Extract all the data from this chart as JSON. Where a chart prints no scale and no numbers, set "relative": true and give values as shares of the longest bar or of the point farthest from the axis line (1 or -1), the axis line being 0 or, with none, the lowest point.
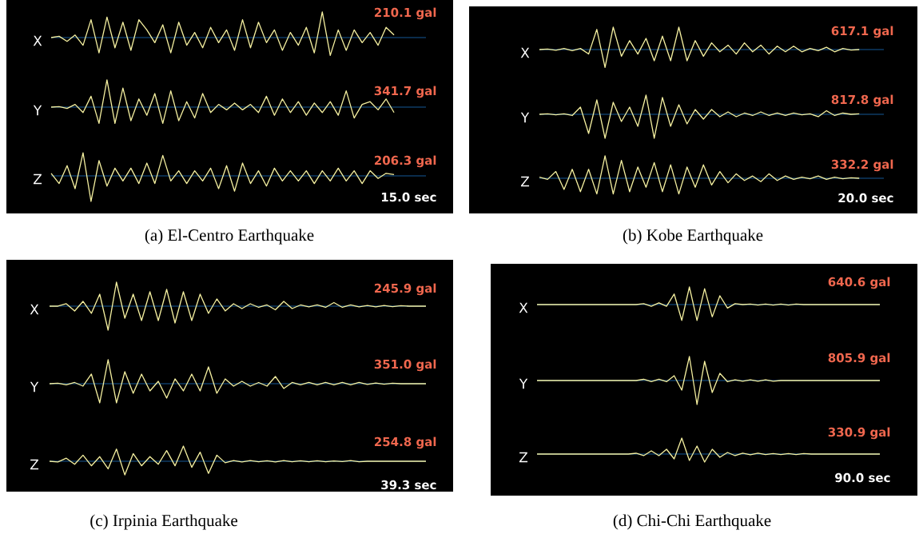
{
  "chart_data": [
    {
      "type": "line",
      "relative": true,
      "categories": [
        null,
        null,
        null,
        null,
        null,
        null,
        null,
        null,
        null,
        null,
        null,
        null,
        null,
        null,
        null,
        null,
        null,
        null,
        null,
        null,
        null,
        null,
        null,
        null,
        null,
        null,
        null,
        null,
        null,
        null,
        null,
        null,
        null,
        null,
        null,
        null,
        null,
        null,
        null,
        null,
        null,
        null,
        null,
        null,
        null,
        null,
        null,
        null
      ],
      "series": [
        {
          "name": "X",
          "color": "#f5f0a0",
          "values": [
            0,
            0.05,
            -0.15,
            0.1,
            -0.3,
            0.7,
            -0.6,
            0.8,
            -0.4,
            0.6,
            -0.5,
            0.7,
            0.3,
            -0.2,
            0.5,
            -0.6,
            0.6,
            -0.3,
            0.2,
            -0.4,
            0.4,
            -0.2,
            0.3,
            -0.5,
            0.7,
            -0.4,
            0.6,
            -0.2,
            0.3,
            -0.5,
            0.2,
            -0.3,
            0.4,
            -0.6,
            1.0,
            -0.7,
            0.3,
            -0.5,
            0.3,
            -0.2,
            0.2,
            -0.3,
            0.4,
            0.1,
            null,
            null,
            null,
            null
          ]
        }
      ],
      "annotations": [
        "210.1 gal"
      ],
      "ref_lines": [
        {
          "axis": "y",
          "value": 0,
          "color": "#1e7fd8"
        }
      ]
    },
    {
      "type": "line",
      "relative": true,
      "categories": [
        null,
        null,
        null,
        null,
        null,
        null,
        null,
        null,
        null,
        null,
        null,
        null,
        null,
        null,
        null,
        null,
        null,
        null,
        null,
        null,
        null,
        null,
        null,
        null,
        null,
        null,
        null,
        null,
        null,
        null,
        null,
        null,
        null,
        null,
        null,
        null,
        null,
        null,
        null,
        null,
        null,
        null,
        null,
        null,
        null,
        null,
        null,
        null
      ],
      "series": [
        {
          "name": "Y",
          "color": "#f5f0a0",
          "values": [
            0,
            0.02,
            -0.05,
            0.1,
            -0.2,
            0.4,
            -0.6,
            1.0,
            -0.6,
            0.7,
            -0.5,
            0.3,
            -0.3,
            0.5,
            -0.6,
            0.6,
            -0.5,
            0.2,
            -0.4,
            0.5,
            -0.2,
            0.1,
            -0.1,
            0.15,
            -0.1,
            0.1,
            -0.2,
            0.4,
            -0.3,
            0.3,
            -0.2,
            0.2,
            -0.3,
            0.15,
            -0.2,
            0.2,
            -0.3,
            0.6,
            -0.4,
            0.1,
            0.2,
            -0.1,
            0.3,
            -0.2,
            null,
            null,
            null,
            null
          ]
        }
      ],
      "annotations": [
        "341.7 gal"
      ],
      "ref_lines": [
        {
          "axis": "y",
          "value": 0,
          "color": "#1e7fd8"
        }
      ]
    },
    {
      "type": "line",
      "relative": true,
      "title": "(a) El-Centro Earthquake",
      "categories": [
        null,
        null,
        null,
        null,
        null,
        null,
        null,
        null,
        null,
        null,
        null,
        null,
        null,
        null,
        null,
        null,
        null,
        null,
        null,
        null,
        null,
        null,
        null,
        null,
        null,
        null,
        null,
        null,
        null,
        null,
        null,
        null,
        null,
        null,
        null,
        null,
        null,
        null,
        null,
        null,
        null,
        null,
        null,
        null,
        null,
        null,
        null,
        null
      ],
      "series": [
        {
          "name": "Z",
          "color": "#f5f0a0",
          "values": [
            0.1,
            -0.3,
            0.4,
            -0.5,
            0.9,
            -1.0,
            0.6,
            -0.4,
            0.3,
            -0.2,
            0.3,
            -0.3,
            0.5,
            -0.3,
            0.8,
            -0.2,
            0.2,
            -0.3,
            0.2,
            -0.2,
            0.3,
            -0.5,
            0.4,
            -0.6,
            0.5,
            -0.3,
            0.2,
            -0.4,
            0.3,
            -0.2,
            0.2,
            -0.2,
            0.2,
            -0.3,
            0.2,
            -0.2,
            0.3,
            -0.2,
            0.2,
            -0.3,
            0.2,
            -0.1,
            0.1,
            0.05,
            null,
            null,
            null,
            null
          ]
        }
      ],
      "annotations": [
        "206.3 gal",
        "15.0 sec"
      ],
      "ref_lines": [
        {
          "axis": "y",
          "value": 0,
          "color": "#1e7fd8"
        }
      ]
    },
    {
      "type": "line",
      "relative": true,
      "categories": [
        null,
        null,
        null,
        null,
        null,
        null,
        null,
        null,
        null,
        null,
        null,
        null,
        null,
        null,
        null,
        null,
        null,
        null,
        null,
        null,
        null,
        null,
        null,
        null,
        null,
        null,
        null,
        null,
        null,
        null,
        null,
        null,
        null,
        null,
        null,
        null,
        null,
        null,
        null,
        null,
        null,
        null,
        null
      ],
      "series": [
        {
          "name": "X",
          "color": "#f5f0a0",
          "values": [
            0,
            0.02,
            -0.03,
            0.05,
            -0.05,
            0.05,
            -0.2,
            0.9,
            -0.8,
            1.0,
            -0.3,
            0.4,
            -0.2,
            0.5,
            -0.5,
            0.6,
            -0.5,
            1.0,
            -0.5,
            0.4,
            -0.3,
            0.3,
            -0.1,
            0.2,
            -0.2,
            0.3,
            -0.1,
            0.2,
            -0.2,
            0.15,
            -0.1,
            0.15,
            -0.1,
            0.05,
            -0.05,
            0.1,
            -0.1,
            0.05,
            -0.02,
            0,
            null,
            null,
            null
          ]
        }
      ],
      "annotations": [
        "617.1 gal"
      ],
      "ref_lines": [
        {
          "axis": "y",
          "value": 0,
          "color": "#1e7fd8"
        }
      ]
    },
    {
      "type": "line",
      "relative": true,
      "categories": [
        null,
        null,
        null,
        null,
        null,
        null,
        null,
        null,
        null,
        null,
        null,
        null,
        null,
        null,
        null,
        null,
        null,
        null,
        null,
        null,
        null,
        null,
        null,
        null,
        null,
        null,
        null,
        null,
        null,
        null,
        null,
        null,
        null,
        null,
        null,
        null,
        null,
        null,
        null,
        null,
        null,
        null,
        null
      ],
      "series": [
        {
          "name": "Y",
          "color": "#f5f0a0",
          "values": [
            0,
            0.02,
            -0.02,
            0.02,
            -0.05,
            0.3,
            -0.8,
            0.6,
            -1.0,
            0.5,
            -0.3,
            0.3,
            -0.5,
            0.8,
            -1.0,
            0.7,
            -0.5,
            0.4,
            -0.4,
            0.2,
            -0.2,
            0.2,
            -0.1,
            0.1,
            -0.1,
            0.05,
            -0.05,
            0.1,
            -0.05,
            0.05,
            -0.05,
            0.05,
            -0.02,
            0.02,
            -0.1,
            0.15,
            -0.05,
            0.05,
            0,
            0.02,
            null,
            null,
            null
          ]
        }
      ],
      "annotations": [
        "817.8 gal"
      ],
      "ref_lines": [
        {
          "axis": "y",
          "value": 0,
          "color": "#1e7fd8"
        }
      ]
    },
    {
      "type": "line",
      "relative": true,
      "title": "(b) Kobe Earthquake",
      "categories": [
        null,
        null,
        null,
        null,
        null,
        null,
        null,
        null,
        null,
        null,
        null,
        null,
        null,
        null,
        null,
        null,
        null,
        null,
        null,
        null,
        null,
        null,
        null,
        null,
        null,
        null,
        null,
        null,
        null,
        null,
        null,
        null,
        null,
        null,
        null,
        null,
        null,
        null,
        null,
        null,
        null,
        null,
        null
      ],
      "series": [
        {
          "name": "Z",
          "color": "#f5f0a0",
          "values": [
            0.05,
            -0.05,
            0.3,
            -0.5,
            0.4,
            -0.6,
            0.4,
            -0.7,
            1.0,
            -0.7,
            0.8,
            -0.6,
            0.5,
            -0.4,
            0.7,
            -0.6,
            0.6,
            -0.7,
            0.5,
            -0.4,
            0.6,
            -0.3,
            0.3,
            -0.2,
            0.2,
            -0.1,
            0.1,
            -0.15,
            0.2,
            -0.1,
            0.1,
            -0.05,
            0.05,
            -0.02,
            0.1,
            -0.05,
            0.05,
            -0.02,
            0.02,
            0,
            null,
            null,
            null
          ]
        }
      ],
      "annotations": [
        "332.2 gal",
        "20.0 sec"
      ],
      "ref_lines": [
        {
          "axis": "y",
          "value": 0,
          "color": "#1e7fd8"
        }
      ]
    },
    {
      "type": "line",
      "relative": true,
      "categories": [
        null,
        null,
        null,
        null,
        null,
        null,
        null,
        null,
        null,
        null,
        null,
        null,
        null,
        null,
        null,
        null,
        null,
        null,
        null,
        null,
        null,
        null,
        null,
        null,
        null,
        null,
        null,
        null,
        null,
        null,
        null,
        null,
        null,
        null,
        null,
        null,
        null,
        null,
        null,
        null,
        null,
        null,
        null,
        null,
        null,
        null
      ],
      "series": [
        {
          "name": "X",
          "color": "#f5f0a0",
          "values": [
            0,
            0,
            0.1,
            -0.2,
            0.2,
            -0.3,
            0.5,
            -1.0,
            1.0,
            -0.5,
            0.5,
            -0.6,
            0.6,
            -0.6,
            0.7,
            -0.7,
            0.6,
            -0.6,
            0.5,
            -0.3,
            0.3,
            -0.2,
            0.1,
            -0.1,
            0.1,
            -0.05,
            0.05,
            -0.15,
            0.2,
            -0.1,
            0.05,
            -0.03,
            0.05,
            -0.05,
            0.15,
            -0.05,
            0.05,
            -0.03,
            0.03,
            -0.03,
            0.03,
            -0.02,
            0.02,
            0,
            0,
            0
          ]
        }
      ],
      "annotations": [
        "245.9 gal"
      ],
      "ref_lines": [
        {
          "axis": "y",
          "value": 0,
          "color": "#1e7fd8"
        }
      ]
    },
    {
      "type": "line",
      "relative": true,
      "categories": [
        null,
        null,
        null,
        null,
        null,
        null,
        null,
        null,
        null,
        null,
        null,
        null,
        null,
        null,
        null,
        null,
        null,
        null,
        null,
        null,
        null,
        null,
        null,
        null,
        null,
        null,
        null,
        null,
        null,
        null,
        null,
        null,
        null,
        null,
        null,
        null,
        null,
        null,
        null,
        null,
        null,
        null,
        null,
        null,
        null,
        null
      ],
      "series": [
        {
          "name": "Y",
          "color": "#f5f0a0",
          "values": [
            0,
            0.02,
            -0.05,
            0.05,
            -0.1,
            0.4,
            -0.8,
            1.0,
            -0.8,
            0.5,
            -0.4,
            0.4,
            -0.3,
            0.1,
            -0.6,
            0.2,
            -0.3,
            0.4,
            -0.3,
            0.7,
            -0.4,
            0.2,
            -0.1,
            0.1,
            -0.1,
            0.05,
            -0.1,
            0.3,
            -0.2,
            0.05,
            -0.05,
            0.05,
            -0.05,
            0.05,
            -0.05,
            0.05,
            -0.05,
            0.05,
            -0.03,
            0.03,
            -0.02,
            0.02,
            0,
            0,
            0,
            0
          ]
        }
      ],
      "annotations": [
        "351.0 gal"
      ],
      "ref_lines": [
        {
          "axis": "y",
          "value": 0,
          "color": "#1e7fd8"
        }
      ]
    },
    {
      "type": "line",
      "relative": true,
      "title": "(c) Irpinia Earthquake",
      "categories": [
        null,
        null,
        null,
        null,
        null,
        null,
        null,
        null,
        null,
        null,
        null,
        null,
        null,
        null,
        null,
        null,
        null,
        null,
        null,
        null,
        null,
        null,
        null,
        null,
        null,
        null,
        null,
        null,
        null,
        null,
        null,
        null,
        null,
        null,
        null,
        null,
        null,
        null,
        null,
        null,
        null,
        null,
        null,
        null,
        null,
        null
      ],
      "series": [
        {
          "name": "Z",
          "color": "#f5f0a0",
          "values": [
            0,
            -0.05,
            0.2,
            -0.2,
            0.4,
            -0.3,
            0.3,
            -0.5,
            0.8,
            -0.9,
            0.5,
            -0.3,
            0.3,
            -0.2,
            0.7,
            -0.3,
            1.0,
            -0.4,
            0.6,
            -0.8,
            0.4,
            -0.1,
            0.05,
            -0.05,
            0.05,
            -0.03,
            0.03,
            -0.05,
            0.05,
            -0.03,
            0.03,
            -0.03,
            0.03,
            -0.03,
            0.02,
            -0.02,
            0.05,
            -0.03,
            0,
            0,
            0,
            0,
            0,
            0,
            0,
            0
          ]
        }
      ],
      "annotations": [
        "254.8 gal",
        "39.3 sec"
      ],
      "ref_lines": [
        {
          "axis": "y",
          "value": 0,
          "color": "#1e7fd8"
        }
      ]
    },
    {
      "type": "line",
      "relative": true,
      "categories": [
        null,
        null,
        null,
        null,
        null,
        null,
        null,
        null,
        null,
        null,
        null,
        null,
        null,
        null,
        null,
        null,
        null,
        null,
        null,
        null,
        null,
        null,
        null,
        null,
        null,
        null,
        null,
        null,
        null,
        null,
        null,
        null,
        null,
        null,
        null,
        null,
        null,
        null,
        null,
        null,
        null,
        null,
        null,
        null,
        null,
        null
      ],
      "series": [
        {
          "name": "X",
          "color": "#f5f0a0",
          "values": [
            0,
            0,
            0,
            0,
            0,
            0,
            0,
            0,
            0,
            0,
            0,
            0,
            0,
            0,
            0.05,
            -0.1,
            0.1,
            -0.1,
            0.6,
            -0.9,
            1.0,
            -0.9,
            0.9,
            -0.7,
            0.5,
            -0.2,
            0.05,
            0,
            0.03,
            -0.03,
            0.03,
            -0.03,
            0.03,
            -0.03,
            0.03,
            0,
            0,
            0,
            0,
            0,
            0,
            0,
            0,
            0,
            0,
            0
          ]
        }
      ],
      "annotations": [
        "640.6 gal"
      ],
      "ref_lines": [
        {
          "axis": "y",
          "value": 0,
          "color": "#1e7fd8"
        }
      ]
    },
    {
      "type": "line",
      "relative": true,
      "categories": [
        null,
        null,
        null,
        null,
        null,
        null,
        null,
        null,
        null,
        null,
        null,
        null,
        null,
        null,
        null,
        null,
        null,
        null,
        null,
        null,
        null,
        null,
        null,
        null,
        null,
        null,
        null,
        null,
        null,
        null,
        null,
        null,
        null,
        null,
        null,
        null,
        null,
        null,
        null,
        null,
        null,
        null,
        null,
        null,
        null,
        null
      ],
      "series": [
        {
          "name": "Y",
          "color": "#f5f0a0",
          "values": [
            0,
            0,
            0,
            0,
            0,
            0,
            0,
            0,
            0,
            0,
            0,
            0,
            0,
            0,
            0.05,
            -0.05,
            0.05,
            -0.05,
            0.2,
            -0.4,
            1.0,
            -1.0,
            0.8,
            -0.5,
            0.3,
            -0.05,
            0.03,
            -0.03,
            0.03,
            -0.03,
            0.03,
            -0.03,
            0,
            0,
            0,
            0,
            0,
            0,
            0,
            0,
            0,
            0,
            0,
            0,
            0,
            0
          ]
        }
      ],
      "annotations": [
        "805.9 gal"
      ],
      "ref_lines": [
        {
          "axis": "y",
          "value": 0,
          "color": "#1e7fd8"
        }
      ]
    },
    {
      "type": "line",
      "relative": true,
      "title": "(d) Chi-Chi Earthquake",
      "categories": [
        null,
        null,
        null,
        null,
        null,
        null,
        null,
        null,
        null,
        null,
        null,
        null,
        null,
        null,
        null,
        null,
        null,
        null,
        null,
        null,
        null,
        null,
        null,
        null,
        null,
        null,
        null,
        null,
        null,
        null,
        null,
        null,
        null,
        null,
        null,
        null,
        null,
        null,
        null,
        null,
        null,
        null,
        null,
        null,
        null,
        null
      ],
      "series": [
        {
          "name": "Z",
          "color": "#f5f0a0",
          "values": [
            0,
            0,
            0,
            0,
            0,
            0,
            0,
            0,
            0,
            0,
            0,
            0,
            0,
            0.05,
            -0.1,
            0.2,
            -0.1,
            0.3,
            -0.3,
            1.0,
            -0.4,
            0.5,
            -0.5,
            0.3,
            -0.2,
            0.1,
            -0.1,
            0.05,
            -0.05,
            0.05,
            -0.03,
            0.03,
            -0.03,
            0.03,
            -0.03,
            0.03,
            0,
            0,
            0,
            0,
            0,
            0,
            0,
            0,
            0,
            0
          ]
        }
      ],
      "annotations": [
        "330.9 gal",
        "90.0 sec"
      ],
      "ref_lines": [
        {
          "axis": "y",
          "value": 0,
          "color": "#1e7fd8"
        }
      ]
    }
  ]
}
